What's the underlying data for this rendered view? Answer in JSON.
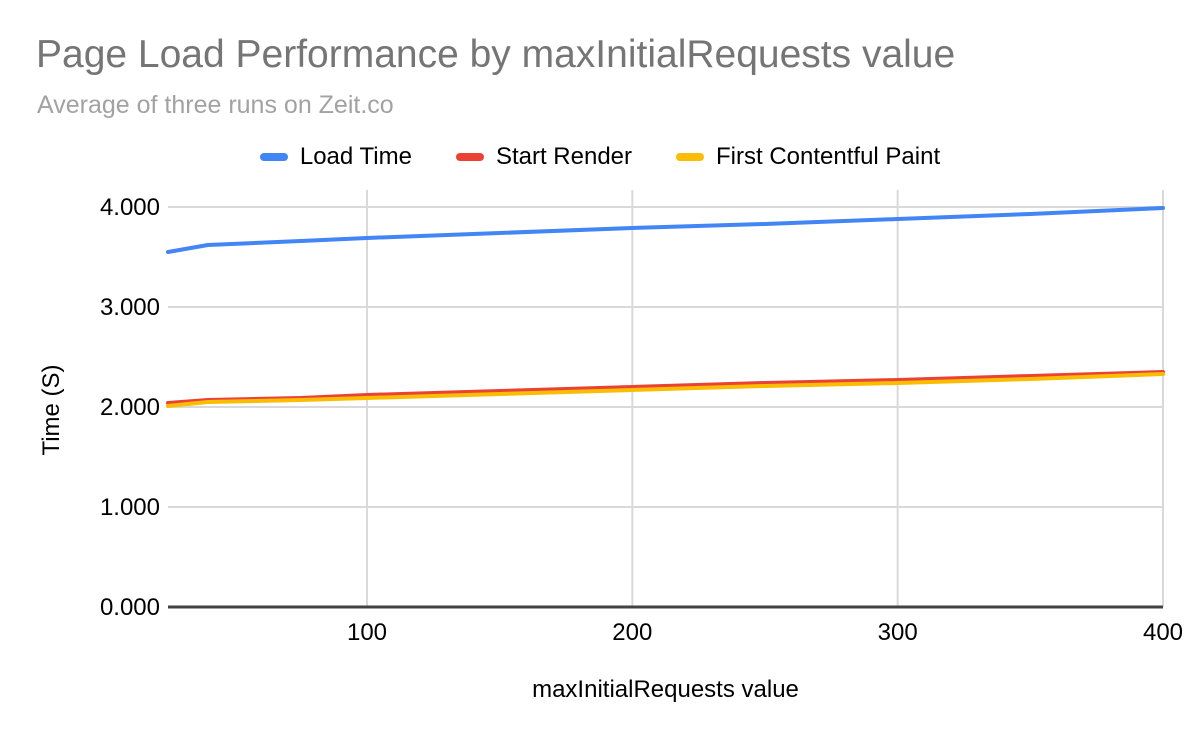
{
  "header": {
    "title": "Page Load Performance by maxInitialRequests value",
    "subtitle": "Average of three runs on Zeit.co"
  },
  "colors": {
    "title": "#757575",
    "subtitle": "#a2a2a2",
    "tick_label": "#000000",
    "gridline": "#d9d9d9",
    "baseline": "#424242",
    "background": "#ffffff"
  },
  "chart_data": {
    "type": "line",
    "title": "Page Load Performance by maxInitialRequests value",
    "subtitle": "Average of three runs on Zeit.co",
    "xlabel": "maxInitialRequests value",
    "ylabel": "Time (S)",
    "xlim": [
      25,
      400
    ],
    "ylim": [
      0,
      4
    ],
    "grid": true,
    "legend_position": "top",
    "x_ticks": [
      {
        "value": 100,
        "label": "100"
      },
      {
        "value": 200,
        "label": "200"
      },
      {
        "value": 300,
        "label": "300"
      },
      {
        "value": 400,
        "label": "400"
      }
    ],
    "y_ticks": [
      {
        "value": 0,
        "label": "0.000"
      },
      {
        "value": 1,
        "label": "1.000"
      },
      {
        "value": 2,
        "label": "2.000"
      },
      {
        "value": 3,
        "label": "3.000"
      },
      {
        "value": 4,
        "label": "4.000"
      }
    ],
    "x": [
      25,
      40,
      75,
      100,
      150,
      200,
      250,
      300,
      350,
      400
    ],
    "series": [
      {
        "name": "Load Time",
        "color": "#4285f4",
        "values": [
          3.55,
          3.62,
          3.66,
          3.69,
          3.74,
          3.79,
          3.83,
          3.88,
          3.93,
          3.99
        ]
      },
      {
        "name": "Start Render",
        "color": "#ea4335",
        "values": [
          2.04,
          2.07,
          2.09,
          2.12,
          2.16,
          2.2,
          2.24,
          2.27,
          2.31,
          2.35
        ]
      },
      {
        "name": "First Contentful Paint",
        "color": "#fbbc04",
        "values": [
          2.01,
          2.05,
          2.07,
          2.09,
          2.13,
          2.17,
          2.21,
          2.24,
          2.28,
          2.33
        ]
      }
    ]
  }
}
